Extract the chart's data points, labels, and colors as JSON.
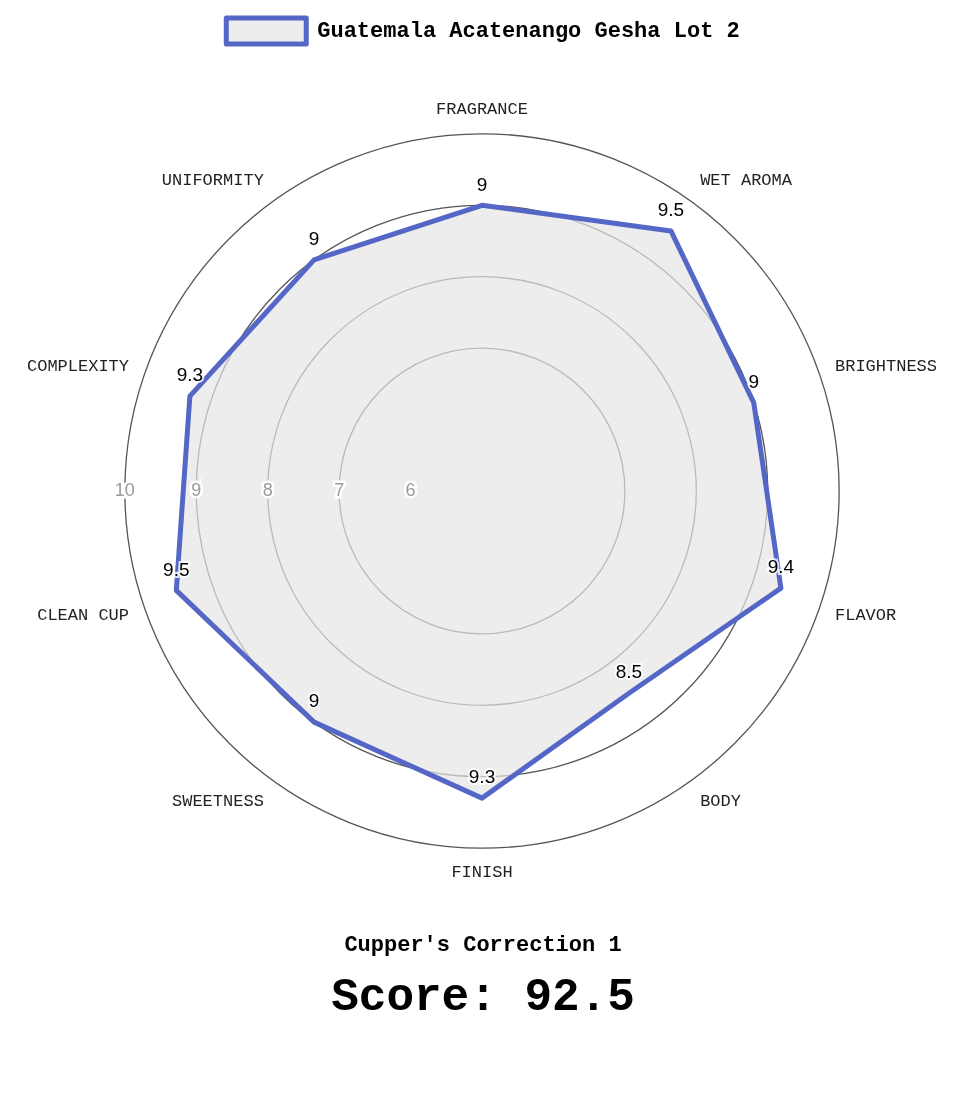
{
  "chart_data": {
    "type": "radar",
    "categories": [
      "FRAGRANCE",
      "WET AROMA",
      "BRIGHTNESS",
      "FLAVOR",
      "BODY",
      "FINISH",
      "SWEETNESS",
      "CLEAN CUP",
      "COMPLEXITY",
      "UNIFORMITY"
    ],
    "series": [
      {
        "name": "Guatemala Acatenango Gesha Lot 2",
        "color": "#5567c6",
        "values": [
          9,
          9.5,
          9,
          9.4,
          8.5,
          9.3,
          9,
          9.5,
          9.3,
          9
        ]
      }
    ],
    "ylim": [
      5,
      10
    ],
    "yticks": [
      6,
      7,
      8,
      9,
      10
    ],
    "grid": true,
    "legend": "top",
    "marker": "none",
    "line_style": "solid",
    "data_labels": true,
    "annotations": [
      "Cupper's Correction 1",
      "Score: 92.5"
    ]
  }
}
